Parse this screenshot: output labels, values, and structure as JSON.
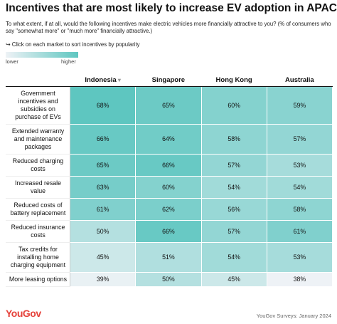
{
  "chart_data": {
    "type": "heatmap",
    "title": "Incentives that are most likely to increase EV adoption in APAC",
    "subtitle": "To what extent, if at all, would the following incentives make electric vehicles more financially attractive to you? (% of consumers who say \"somewhat more\" or \"much more\" financially attractive.)",
    "note": "Click on each market to sort incentives by popularity",
    "legend_labels": [
      "lower",
      "higher"
    ],
    "color_low": "#eef2f6",
    "color_high": "#5ec6c0",
    "categories": [
      "Government incentives and subsidies on purchase of EVs",
      "Extended warranty and maintenance packages",
      "Reduced charging costs",
      "Increased resale value",
      "Reduced costs of battery replacement",
      "Reduced insurance costs",
      "Tax credits for installing home charging equipment",
      "More leasing options"
    ],
    "series": [
      {
        "name": "Indonesia",
        "values": [
          68,
          66,
          65,
          63,
          61,
          50,
          45,
          39
        ],
        "value_labels": [
          "68%",
          "66%",
          "65%",
          "63%",
          "61%",
          "50%",
          "45%",
          "39%"
        ]
      },
      {
        "name": "Singapore",
        "values": [
          65,
          64,
          66,
          60,
          62,
          66,
          51,
          50
        ],
        "value_labels": [
          "65%",
          "64%",
          "66%",
          "60%",
          "62%",
          "66%",
          "51%",
          "50%"
        ]
      },
      {
        "name": "Hong Kong",
        "values": [
          60,
          58,
          57,
          54,
          56,
          57,
          54,
          45
        ],
        "value_labels": [
          "60%",
          "58%",
          "57%",
          "54%",
          "56%",
          "57%",
          "54%",
          "45%"
        ]
      },
      {
        "name": "Australia",
        "values": [
          59,
          57,
          53,
          54,
          58,
          61,
          53,
          38
        ],
        "value_labels": [
          "59%",
          "57%",
          "53%",
          "54%",
          "58%",
          "61%",
          "53%",
          "38%"
        ]
      }
    ],
    "logo": "YouGov",
    "source": "YouGov Surveys: January 2024"
  }
}
